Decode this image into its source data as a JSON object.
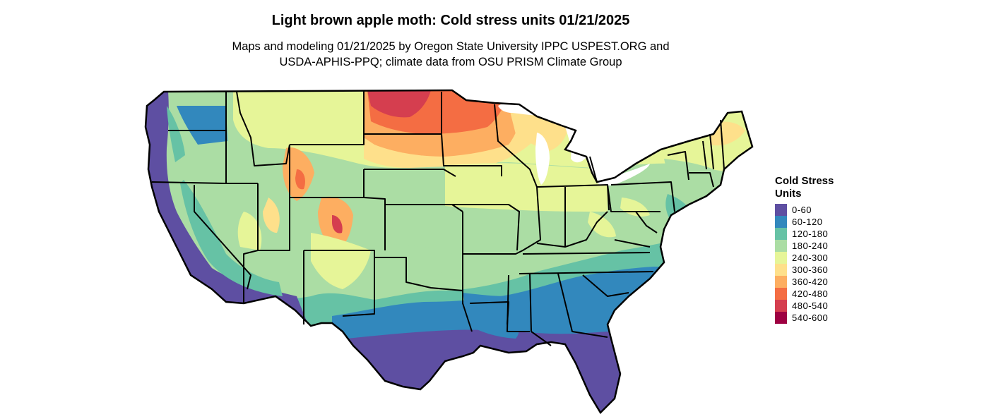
{
  "title": "Light brown apple moth: Cold stress units 01/21/2025",
  "subtitle_line1": "Maps and modeling 01/21/2025 by Oregon State University IPPC USPEST.ORG and",
  "subtitle_line2": "USDA-APHIS-PPQ; climate data from OSU PRISM Climate Group",
  "legend": {
    "title_line1": "Cold Stress",
    "title_line2": "Units",
    "items": [
      {
        "label": "0-60",
        "color": "#5e4fa2"
      },
      {
        "label": "60-120",
        "color": "#3288bd"
      },
      {
        "label": "120-180",
        "color": "#66c2a5"
      },
      {
        "label": "180-240",
        "color": "#abdda4"
      },
      {
        "label": "240-300",
        "color": "#e6f598"
      },
      {
        "label": "300-360",
        "color": "#fee08b"
      },
      {
        "label": "360-420",
        "color": "#fdae61"
      },
      {
        "label": "420-480",
        "color": "#f46d43"
      },
      {
        "label": "480-540",
        "color": "#d53e4f"
      },
      {
        "label": "540-600",
        "color": "#9e0142"
      }
    ]
  }
}
